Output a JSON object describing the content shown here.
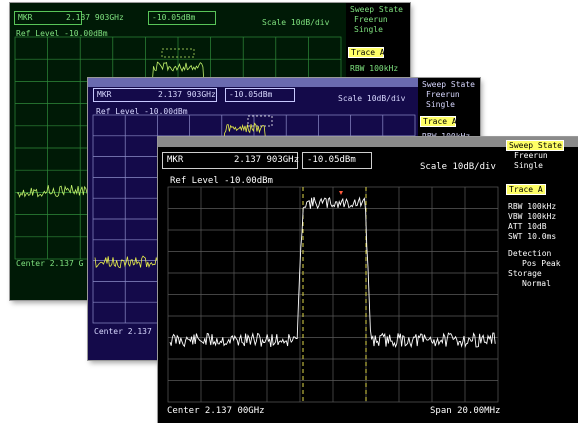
{
  "back_screen": {
    "marker_label": "MKR",
    "marker_freq": "2.137 903GHz",
    "marker_level": "-10.05dBm",
    "scale": "Scale 10dB/div",
    "ref_level": "Ref Level -10.00dBm",
    "center": "Center 2.137 G",
    "sweep_state": "Sweep State",
    "freerun": "Freerun",
    "single": "Single",
    "trace": "Trace A",
    "rbw": "RBW 100kHz"
  },
  "middle_screen": {
    "marker_label": "MKR",
    "marker_freq": "2.137 903GHz",
    "marker_level": "-10.05dBm",
    "scale": "Scale 10dB/div",
    "ref_level": "Ref Level -10.00dBm",
    "center": "Center 2.137",
    "sweep_state": "Sweep State",
    "freerun": "Freerun",
    "single": "Single",
    "trace": "Trace A",
    "rbw": "RBW 100kHz"
  },
  "front_screen": {
    "marker_label": "MKR",
    "marker_freq": "2.137 903GHz",
    "marker_level": "-10.05dBm",
    "scale": "Scale 10dB/div",
    "ref_level": "Ref Level -10.00dBm",
    "center": "Center 2.137 00GHz",
    "span": "Span 20.00MHz",
    "sidebar": {
      "sweep_state": "Sweep State",
      "freerun": "Freerun",
      "single": "Single",
      "trace": "Trace A",
      "rbw": "RBW 100kHz",
      "vbw": "VBW 100kHz",
      "att": "ATT 10dB",
      "swt": "SWT 10.0ms",
      "detection": "Detection",
      "detection_value": "Pos Peak",
      "storage": "Storage",
      "storage_value": "Normal"
    }
  },
  "colors": {
    "back_trace": "#bff06a",
    "middle_trace": "#e8ef4a",
    "front_trace": "#ffffff",
    "marker_line": "#e0d84a",
    "marker_point": "#ff5a3c"
  }
}
